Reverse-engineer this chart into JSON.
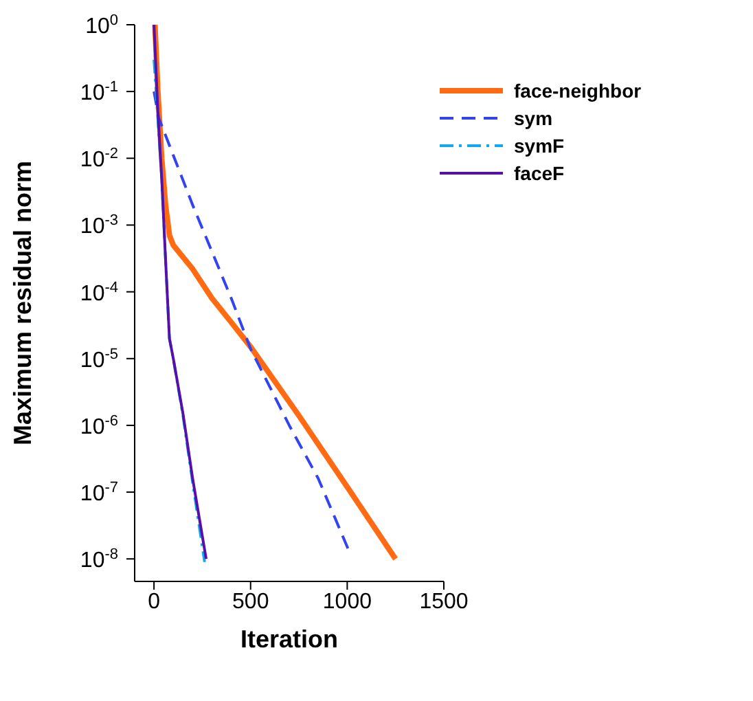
{
  "chart_data": {
    "type": "line",
    "xlabel": "Iteration",
    "ylabel": "Maximum residual norm",
    "xlim": [
      -100,
      1500
    ],
    "xticks": [
      0,
      500,
      1000,
      1500
    ],
    "ylim": [
      4.6e-09,
      1
    ],
    "log": "y",
    "yticks": [
      {
        "value": 1e-08,
        "label": "10$^{-8}$"
      },
      {
        "value": 1e-07,
        "label": "10$^{-7}$"
      },
      {
        "value": 1e-06,
        "label": "10$^{-6}$"
      },
      {
        "value": 1e-05,
        "label": "10$^{-5}$"
      },
      {
        "value": 0.0001,
        "label": "10$^{-4}$"
      },
      {
        "value": 0.001,
        "label": "10$^{-3}$"
      },
      {
        "value": 0.01,
        "label": "10$^{-2}$"
      },
      {
        "value": 0.1,
        "label": "10$^{-1}$"
      },
      {
        "value": 1,
        "label": "10$^{0}$"
      }
    ],
    "grid": false,
    "legend": "top right",
    "marker": "none",
    "series": [
      {
        "name": "face-neighbor",
        "color": "#ff6a13",
        "line_style": "solid",
        "x": [
          5,
          20,
          40,
          60,
          80,
          100,
          200,
          300,
          400,
          500,
          750,
          1000,
          1250
        ],
        "values": [
          1,
          0.1,
          0.01,
          0.002,
          0.0007,
          0.0005,
          0.00022,
          8e-05,
          3.5e-05,
          1.5e-05,
          1.4e-06,
          1.2e-07,
          1e-08
        ]
      },
      {
        "name": "sym",
        "color": "#3344ee",
        "line_style": "dashed",
        "x": [
          0,
          25,
          200,
          400,
          500,
          700,
          850,
          1015
        ],
        "values": [
          0.1,
          0.04,
          0.002,
          8e-05,
          1.4e-05,
          1e-06,
          1.6e-07,
          1.2e-08
        ]
      },
      {
        "name": "symF",
        "color": "#11aaee",
        "line_style": "dashdot",
        "x": [
          0,
          20,
          40,
          60,
          80,
          100,
          150,
          200,
          262
        ],
        "values": [
          0.3,
          0.04,
          0.005,
          0.0003,
          2e-05,
          1e-05,
          1.4e-06,
          1.4e-07,
          9e-09
        ]
      },
      {
        "name": "faceF",
        "color": "#5511aa",
        "line_style": "solid",
        "x": [
          0,
          20,
          40,
          60,
          80,
          100,
          150,
          200,
          270
        ],
        "values": [
          1,
          0.05,
          0.005,
          0.0003,
          2e-05,
          1e-05,
          1.5e-06,
          1.6e-07,
          1e-08
        ]
      }
    ]
  }
}
